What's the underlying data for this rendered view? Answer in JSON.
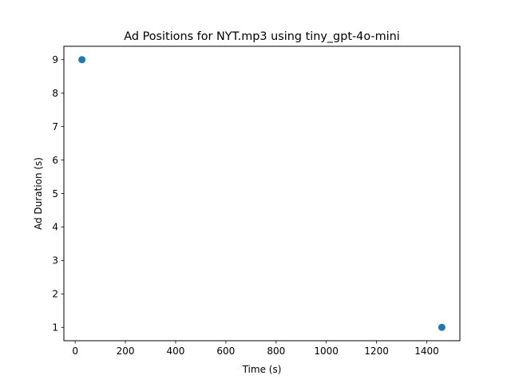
{
  "chart_data": {
    "type": "scatter",
    "title": "Ad Positions for NYT.mp3 using tiny_gpt-4o-mini",
    "xlabel": "Time (s)",
    "ylabel": "Ad Duration (s)",
    "xlim": [
      -45,
      1532
    ],
    "ylim": [
      0.6,
      9.4
    ],
    "xticks": [
      0,
      200,
      400,
      600,
      800,
      1000,
      1200,
      1400
    ],
    "yticks": [
      1,
      2,
      3,
      4,
      5,
      6,
      7,
      8,
      9
    ],
    "grid": false,
    "points": [
      {
        "x": 27,
        "y": 9
      },
      {
        "x": 1460,
        "y": 1
      }
    ],
    "colors": {
      "marker": "#1f77b4",
      "axes": "#000000"
    }
  }
}
